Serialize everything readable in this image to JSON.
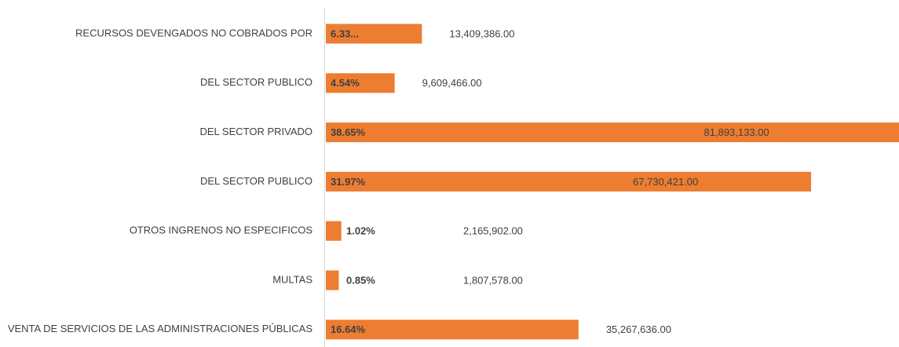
{
  "chart_data": {
    "type": "hbar",
    "categories": [
      "RECURSOS DEVENGADOS NO COBRADOS POR",
      "DEL SECTOR PUBLICO",
      "DEL SECTOR PRIVADO",
      "DEL SECTOR PUBLICO",
      "OTROS INGRENOS NO ESPECIFICOS",
      "MULTAS",
      "VENTA DE SERVICIOS DE LAS ADMINISTRACIONES PÚBLICAS"
    ],
    "values": [
      13409386,
      9609466,
      81893133,
      67730421,
      2165902,
      1807578,
      35267636
    ],
    "value_labels": [
      "13,409,386.00",
      "9,609,466.00",
      "81,893,133.00",
      "67,730,421.00",
      "2,165,902.00",
      "1,807,578.00",
      "35,267,636.00"
    ],
    "percent_labels": [
      "6.33...",
      "4.54%",
      "38.65%",
      "31.97%",
      "1.02%",
      "0.85%",
      "16.64%"
    ],
    "color": "#ed7d31",
    "xlim": [
      0,
      80000000
    ]
  }
}
